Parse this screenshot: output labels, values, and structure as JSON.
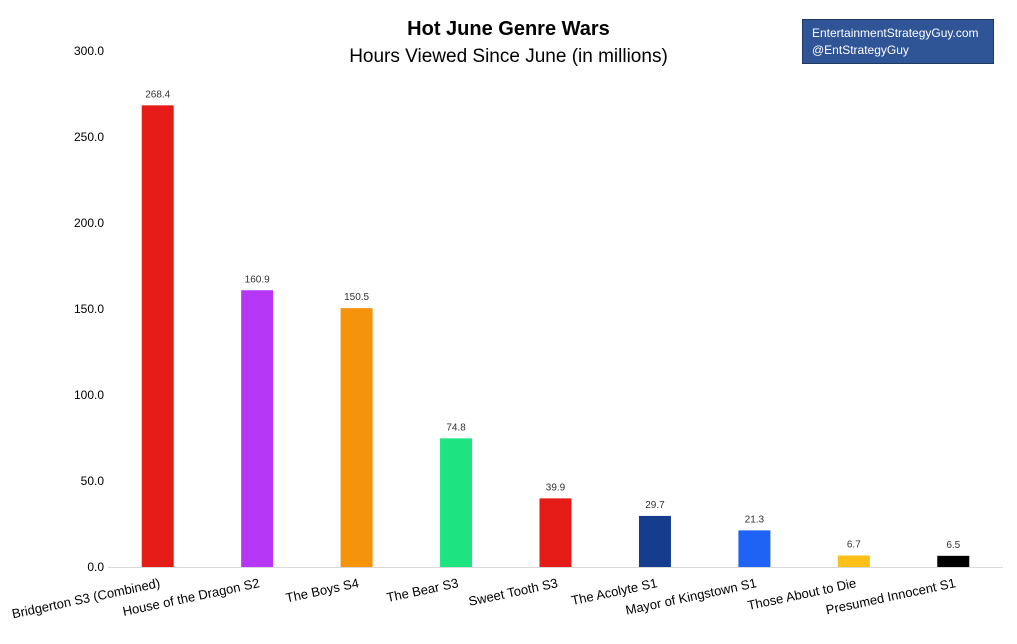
{
  "header": {
    "title": "Hot June Genre Wars",
    "subtitle": "Hours Viewed Since June (in millions)"
  },
  "brand_box": {
    "line1": "EntertainmentStrategyGuy.com",
    "line2": "@EntStrategyGuy",
    "background": "#2f5597"
  },
  "chart_data": {
    "type": "bar",
    "title": "Hot June Genre Wars",
    "subtitle": "Hours Viewed Since June (in millions)",
    "xlabel": "",
    "ylabel": "",
    "ylim": [
      0,
      300
    ],
    "yticks": [
      "0.0",
      "50.0",
      "100.0",
      "150.0",
      "200.0",
      "250.0",
      "300.0"
    ],
    "grid": false,
    "legend": "none",
    "categories": [
      "Bridgerton S3 (Combined)",
      "House of the Dragon S2",
      "The Boys S4",
      "The Bear S3",
      "Sweet Tooth S3",
      "The Acolyte S1",
      "Mayor of Kingstown S1",
      "Those About to Die",
      "Presumed Innocent S1"
    ],
    "values": [
      268.4,
      160.9,
      150.5,
      74.8,
      39.9,
      29.7,
      21.3,
      6.7,
      6.5
    ],
    "data_labels": [
      "268.4",
      "160.9",
      "150.5",
      "74.8",
      "39.9",
      "29.7",
      "21.3",
      "6.7",
      "6.5"
    ],
    "colors": [
      "#e51b17",
      "#b536f5",
      "#f5930d",
      "#1de381",
      "#e51b17",
      "#163c8e",
      "#1f63f5",
      "#fdc018",
      "#000000"
    ]
  }
}
